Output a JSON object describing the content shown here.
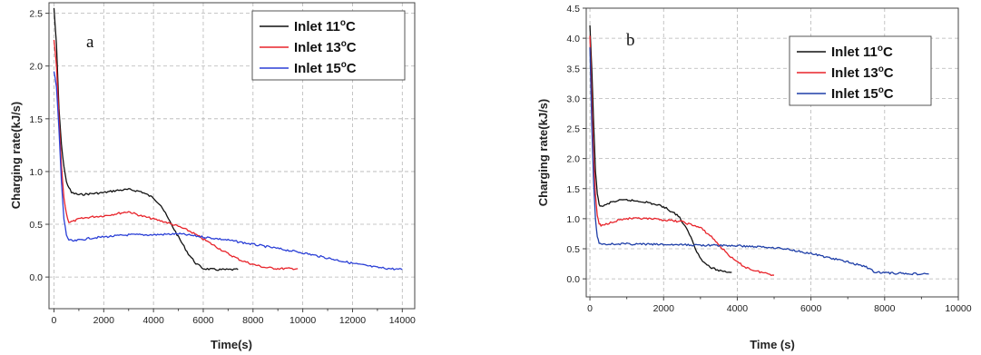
{
  "chart_data": [
    {
      "type": "line",
      "panel_label": "a",
      "xlabel": "Time(s)",
      "ylabel": "Charging rate(kJ/s)",
      "xlim": [
        -200,
        14500
      ],
      "ylim": [
        -0.3,
        2.6
      ],
      "xticks": [
        0,
        2000,
        4000,
        6000,
        8000,
        10000,
        12000,
        14000
      ],
      "xtick_labels": [
        "0",
        "2000",
        "4000",
        "6000",
        "8000",
        "10000",
        "12000",
        "14000"
      ],
      "yticks": [
        0.0,
        0.5,
        1.0,
        1.5,
        2.0,
        2.5
      ],
      "ytick_labels": [
        "0.0",
        "0.5",
        "1.0",
        "1.5",
        "2.0",
        "2.5"
      ],
      "grid": true,
      "legend_position": "top-right",
      "series": [
        {
          "name": "Inlet 11°C",
          "name_base": "Inlet 11",
          "name_sup": "o",
          "name_unit": "C",
          "color": "#111111",
          "x": [
            0,
            100,
            200,
            300,
            400,
            500,
            700,
            1000,
            1500,
            2000,
            2500,
            3000,
            3500,
            4000,
            4300,
            4600,
            5000,
            5400,
            5700,
            6000,
            6500,
            7000,
            7400
          ],
          "y": [
            2.55,
            2.2,
            1.6,
            1.25,
            1.05,
            0.9,
            0.8,
            0.78,
            0.79,
            0.8,
            0.82,
            0.83,
            0.81,
            0.75,
            0.68,
            0.55,
            0.38,
            0.22,
            0.13,
            0.08,
            0.07,
            0.07,
            0.07
          ]
        },
        {
          "name": "Inlet 13°C",
          "name_base": "Inlet 13",
          "name_sup": "o",
          "name_unit": "C",
          "color": "#e8232a",
          "x": [
            0,
            100,
            200,
            300,
            400,
            500,
            600,
            800,
            1000,
            1500,
            2000,
            2500,
            3000,
            3500,
            4000,
            4500,
            5000,
            5500,
            6000,
            6500,
            7000,
            7500,
            8000,
            8500,
            9000,
            9500,
            9800
          ],
          "y": [
            2.25,
            2.0,
            1.5,
            1.05,
            0.75,
            0.6,
            0.52,
            0.53,
            0.55,
            0.57,
            0.58,
            0.6,
            0.62,
            0.58,
            0.55,
            0.52,
            0.48,
            0.43,
            0.36,
            0.29,
            0.22,
            0.16,
            0.12,
            0.09,
            0.08,
            0.08,
            0.08
          ]
        },
        {
          "name": "Inlet 15°C",
          "name_base": "Inlet 15",
          "name_sup": "o",
          "name_unit": "C",
          "color": "#2a3fd6",
          "x": [
            0,
            100,
            200,
            300,
            400,
            500,
            600,
            800,
            1000,
            1500,
            2000,
            3000,
            4000,
            5000,
            6000,
            7000,
            8000,
            9000,
            10000,
            11000,
            12000,
            13000,
            14000
          ],
          "y": [
            1.95,
            1.8,
            1.4,
            0.9,
            0.55,
            0.4,
            0.35,
            0.34,
            0.35,
            0.37,
            0.38,
            0.4,
            0.4,
            0.41,
            0.38,
            0.35,
            0.31,
            0.27,
            0.23,
            0.18,
            0.13,
            0.09,
            0.07
          ]
        }
      ]
    },
    {
      "type": "line",
      "panel_label": "b",
      "xlabel": "Time (s)",
      "ylabel": "Charging rate(kJ/s)",
      "xlim": [
        -100,
        10000
      ],
      "ylim": [
        -0.3,
        4.5
      ],
      "xticks": [
        0,
        2000,
        4000,
        6000,
        8000,
        10000
      ],
      "xtick_labels": [
        "0",
        "2000",
        "4000",
        "6000",
        "8000",
        "10000"
      ],
      "yticks": [
        0.0,
        0.5,
        1.0,
        1.5,
        2.0,
        2.5,
        3.0,
        3.5,
        4.0,
        4.5
      ],
      "ytick_labels": [
        "0.0",
        "0.5",
        "1.0",
        "1.5",
        "2.0",
        "2.5",
        "3.0",
        "3.5",
        "4.0",
        "4.5"
      ],
      "grid": true,
      "legend_position": "top-right",
      "series": [
        {
          "name": "Inlet 11°C",
          "name_base": "Inlet 11",
          "name_sup": "o",
          "name_unit": "C",
          "color": "#111111",
          "x": [
            0,
            50,
            100,
            150,
            200,
            250,
            300,
            400,
            600,
            800,
            1000,
            1500,
            2000,
            2400,
            2700,
            2900,
            3100,
            3300,
            3500,
            3700,
            3850
          ],
          "y": [
            4.2,
            3.5,
            2.6,
            1.8,
            1.4,
            1.25,
            1.2,
            1.22,
            1.28,
            1.3,
            1.31,
            1.28,
            1.2,
            1.05,
            0.75,
            0.45,
            0.27,
            0.18,
            0.14,
            0.12,
            0.11
          ]
        },
        {
          "name": "Inlet 13°C",
          "name_base": "Inlet 13",
          "name_sup": "o",
          "name_unit": "C",
          "color": "#e8232a",
          "x": [
            0,
            50,
            100,
            150,
            200,
            250,
            300,
            400,
            600,
            800,
            1000,
            1500,
            2000,
            2500,
            3000,
            3300,
            3600,
            3900,
            4200,
            4500,
            4800,
            5000
          ],
          "y": [
            4.05,
            3.0,
            2.0,
            1.4,
            1.05,
            0.92,
            0.88,
            0.9,
            0.95,
            0.98,
            1.0,
            1.0,
            0.98,
            0.95,
            0.85,
            0.7,
            0.5,
            0.32,
            0.2,
            0.13,
            0.09,
            0.06
          ]
        },
        {
          "name": "Inlet 15°C",
          "name_base": "Inlet 15",
          "name_sup": "o",
          "name_unit": "C",
          "color": "#1f3fa8",
          "x": [
            0,
            50,
            100,
            150,
            200,
            250,
            300,
            400,
            600,
            1000,
            2000,
            3000,
            4000,
            5000,
            5500,
            6000,
            6500,
            7000,
            7500,
            7700,
            8000,
            8500,
            9000,
            9200
          ],
          "y": [
            3.85,
            2.6,
            1.6,
            1.0,
            0.7,
            0.6,
            0.58,
            0.58,
            0.58,
            0.58,
            0.57,
            0.56,
            0.55,
            0.52,
            0.48,
            0.42,
            0.35,
            0.28,
            0.2,
            0.12,
            0.1,
            0.09,
            0.08,
            0.08
          ]
        }
      ]
    }
  ]
}
